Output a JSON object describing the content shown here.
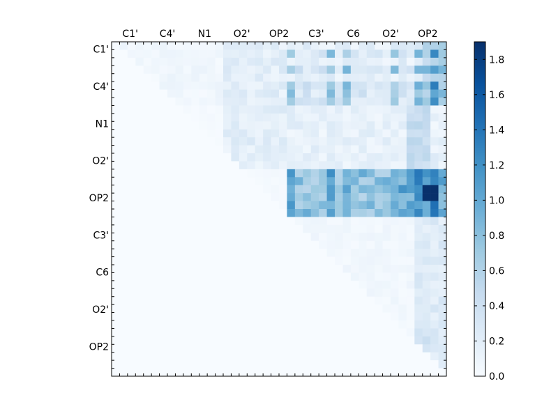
{
  "chart_data": {
    "type": "heatmap",
    "title": "",
    "xlabel": "",
    "ylabel": "",
    "x_tick_labels": [
      "C1'",
      "C4'",
      "N1",
      "O2'",
      "OP2",
      "C3'",
      "C6",
      "O2'",
      "OP2"
    ],
    "y_tick_labels": [
      "C1'",
      "C4'",
      "N1",
      "O2'",
      "OP2",
      "C3'",
      "C6",
      "O2'",
      "OP2"
    ],
    "x_ticks_position": "top",
    "matrix_size": 42,
    "colormap": "Blues",
    "colorbar": {
      "range": [
        0.0,
        1.9
      ],
      "ticks": [
        0.0,
        0.2,
        0.4,
        0.6,
        0.8,
        1.0,
        1.2,
        1.4,
        1.6,
        1.8
      ],
      "tick_labels": [
        "0.0",
        "0.2",
        "0.4",
        "0.6",
        "0.8",
        "1.0",
        "1.2",
        "1.4",
        "1.6",
        "1.8"
      ],
      "placement": "right"
    },
    "structure": "upper-triangular; strongest values (~1.4–1.9) in rows OP2 block and right-most columns"
  },
  "colors": {
    "low": "#f7fbff",
    "high": "#08306b"
  }
}
